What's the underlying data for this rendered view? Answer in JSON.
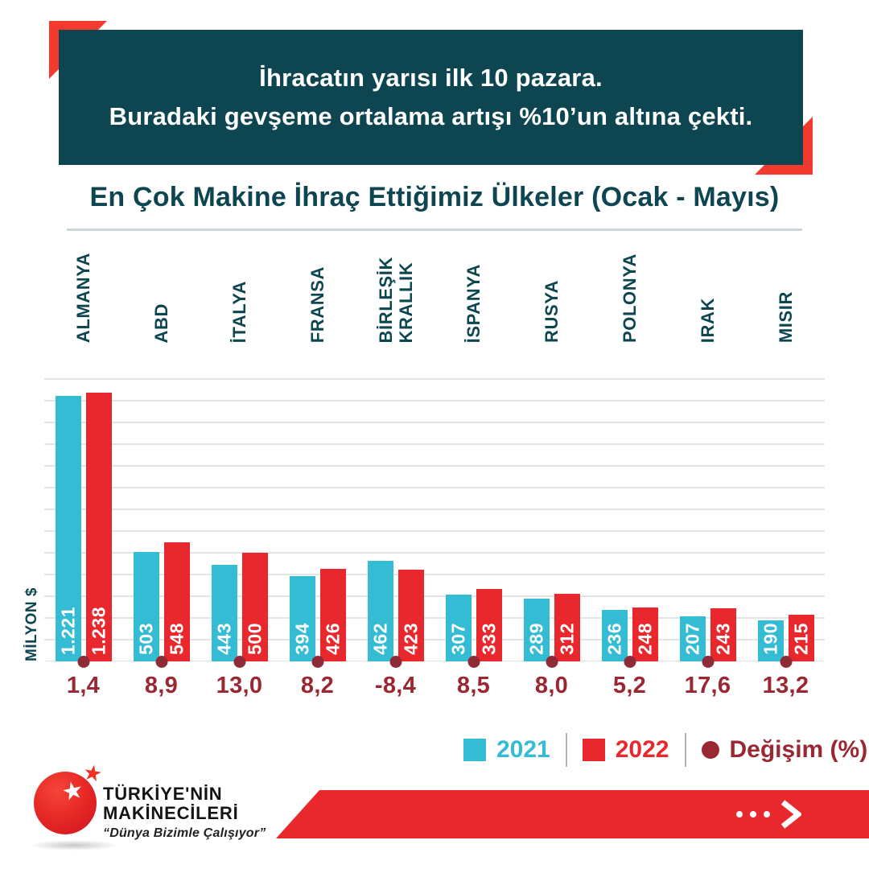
{
  "banner": {
    "line1": "İhracatın yarısı ilk 10 pazara.",
    "line2": "Buradaki gevşeme ortalama artışı %10’un altına çekti."
  },
  "title": "En Çok Makine İhraç Ettiğimiz Ülkeler (Ocak - Mayıs)",
  "chart_data": {
    "type": "bar",
    "categories": [
      "ALMANYA",
      "ABD",
      "İTALYA",
      "FRANSA",
      "BİRLEŞİK\nKRALLIK",
      "İSPANYA",
      "RUSYA",
      "POLONYA",
      "IRAK",
      "MISIR"
    ],
    "series": [
      {
        "name": "2021",
        "values": [
          1221,
          503,
          443,
          394,
          462,
          307,
          289,
          236,
          207,
          190
        ]
      },
      {
        "name": "2022",
        "values": [
          1238,
          548,
          500,
          426,
          423,
          333,
          312,
          248,
          243,
          215
        ]
      }
    ],
    "value_labels": [
      [
        "1.221",
        "1.238"
      ],
      [
        "503",
        "548"
      ],
      [
        "443",
        "500"
      ],
      [
        "394",
        "426"
      ],
      [
        "462",
        "423"
      ],
      [
        "307",
        "333"
      ],
      [
        "289",
        "312"
      ],
      [
        "236",
        "248"
      ],
      [
        "207",
        "243"
      ],
      [
        "190",
        "215"
      ]
    ],
    "change_percent": [
      "1,4",
      "8,9",
      "13,0",
      "8,2",
      "-8,4",
      "8,5",
      "8,0",
      "5,2",
      "17,6",
      "13,2"
    ],
    "ylabel": "MİLYON $",
    "ylim": [
      0,
      1300
    ],
    "grid": true,
    "legend_position": "bottom-right"
  },
  "legend": {
    "items": [
      {
        "label": "2021",
        "color": "#33bcd4",
        "shape": "square"
      },
      {
        "label": "2022",
        "color": "#e8282d",
        "shape": "square"
      },
      {
        "label": "Değişim (%)",
        "color": "#9b2733",
        "shape": "circle"
      }
    ]
  },
  "footer": {
    "logo_line1": "TÜRKİYE'NİN",
    "logo_line2": "MAKİNECİLERİ",
    "slogan": "“Dünya Bizimle Çalışıyor”",
    "cta_icon": "ellipsis-chevron-right-icon",
    "star_glyph": "★"
  },
  "colors": {
    "teal": "#0d4650",
    "cyan": "#33bcd4",
    "red": "#e8282d",
    "accent_red": "#f23a2e",
    "maroon": "#9b2733",
    "gridline": "#e4e4e4"
  }
}
